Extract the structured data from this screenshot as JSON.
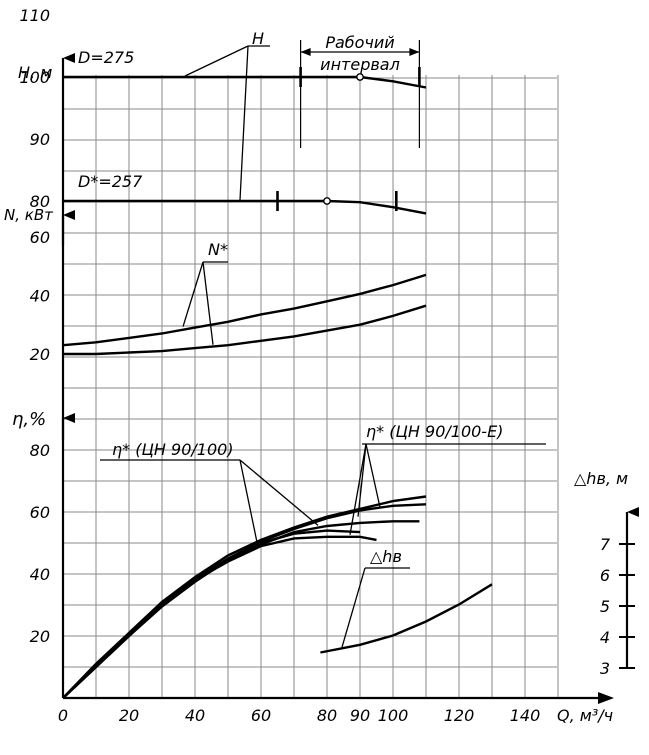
{
  "chart_data": {
    "type": "line",
    "x_label": "Q, м³/ч",
    "x_ticks": [
      0,
      20,
      40,
      60,
      80,
      90,
      100,
      120,
      140
    ],
    "xlim": [
      0,
      150
    ],
    "panels": [
      {
        "id": "head",
        "ylabel": "H, м",
        "ylim": [
          80,
          115
        ],
        "y_ticks": [
          80,
          90,
          100,
          110
        ],
        "annotation": "H",
        "working_interval_label": [
          "Рабочий",
          "интервал"
        ],
        "working_interval_x": [
          72,
          108
        ],
        "series": [
          {
            "name": "D=275",
            "x": [
              0,
              20,
              40,
              60,
              80,
              90,
              100,
              110
            ],
            "y": [
              100,
              100,
              100,
              100,
              100,
              100,
              99.3,
              98.3
            ],
            "marker_x": 90,
            "limit_ticks_x": [
              72,
              108
            ]
          },
          {
            "name": "D*=257",
            "x": [
              0,
              20,
              40,
              60,
              80,
              90,
              100,
              110
            ],
            "y": [
              80,
              80,
              80,
              80,
              80,
              79.8,
              79,
              78
            ],
            "marker_x": 80,
            "limit_ticks_x": [
              65,
              101
            ]
          }
        ]
      },
      {
        "id": "power",
        "ylabel": "N, кВт",
        "ylim": [
          14,
          68
        ],
        "y_ticks": [
          20,
          40,
          60
        ],
        "annotation": "N*",
        "series": [
          {
            "name": "N* upper",
            "x": [
              0,
              10,
              20,
              30,
              40,
              50,
              60,
              70,
              80,
              90,
              100,
              110
            ],
            "y": [
              23,
              24,
              25.5,
              27,
              29,
              31,
              33.5,
              35.5,
              38,
              40.5,
              43.5,
              47
            ]
          },
          {
            "name": "N* lower",
            "x": [
              0,
              10,
              20,
              30,
              40,
              50,
              60,
              70,
              80,
              90,
              100,
              110
            ],
            "y": [
              20,
              20,
              20.5,
              21,
              22,
              23,
              24.5,
              26,
              28,
              30,
              33,
              36.5
            ]
          }
        ]
      },
      {
        "id": "efficiency",
        "ylabel": "η,%",
        "ylim": [
          0,
          88
        ],
        "y_ticks": [
          20,
          40,
          60,
          80
        ],
        "annotation_left": "η* (ЦН 90/100)",
        "annotation_right": "η* (ЦН 90/100-Е)",
        "series": [
          {
            "name": "η* (ЦН 90/100) a",
            "x": [
              0,
              10,
              20,
              30,
              40,
              50,
              60,
              70,
              80,
              90,
              95
            ],
            "y": [
              0,
              10,
              20,
              30,
              38,
              44,
              49,
              51.5,
              52,
              52,
              51
            ]
          },
          {
            "name": "η* (ЦН 90/100) b",
            "x": [
              0,
              10,
              20,
              30,
              40,
              50,
              60,
              70,
              80,
              90
            ],
            "y": [
              0,
              10,
              20.5,
              30.5,
              38.5,
              45,
              50,
              53,
              54,
              53.5
            ]
          },
          {
            "name": "η* (ЦН 90/100-Е) a",
            "x": [
              0,
              10,
              20,
              30,
              40,
              50,
              60,
              70,
              80,
              90,
              100,
              110
            ],
            "y": [
              0,
              11,
              21,
              31,
              39,
              46,
              51,
              55,
              58.5,
              61,
              63.5,
              65
            ]
          },
          {
            "name": "η* (ЦН 90/100-Е) b",
            "x": [
              0,
              10,
              20,
              30,
              40,
              50,
              60,
              70,
              80,
              90,
              100,
              110
            ],
            "y": [
              0,
              10.5,
              20.5,
              30,
              38,
              45,
              50.5,
              54.5,
              58,
              60.5,
              62,
              62.5
            ]
          },
          {
            "name": "η* (ЦН 90/100-Е) c",
            "x": [
              0,
              10,
              20,
              30,
              40,
              50,
              60,
              70,
              80,
              90,
              100,
              108
            ],
            "y": [
              0,
              10,
              20,
              29.5,
              37.5,
              44.5,
              49.5,
              53.5,
              55.5,
              56.5,
              57,
              57
            ]
          }
        ]
      },
      {
        "id": "npsh",
        "ylabel": "△hв, м",
        "ylim": [
          3,
          7.3
        ],
        "y_ticks": [
          3,
          4,
          5,
          6,
          7
        ],
        "annotation": "△hв",
        "series": [
          {
            "name": "△hв",
            "x": [
              78,
              90,
              100,
              110,
              120,
              130
            ],
            "y": [
              3.5,
              3.75,
              4.05,
              4.5,
              5.05,
              5.7
            ]
          }
        ]
      }
    ]
  }
}
